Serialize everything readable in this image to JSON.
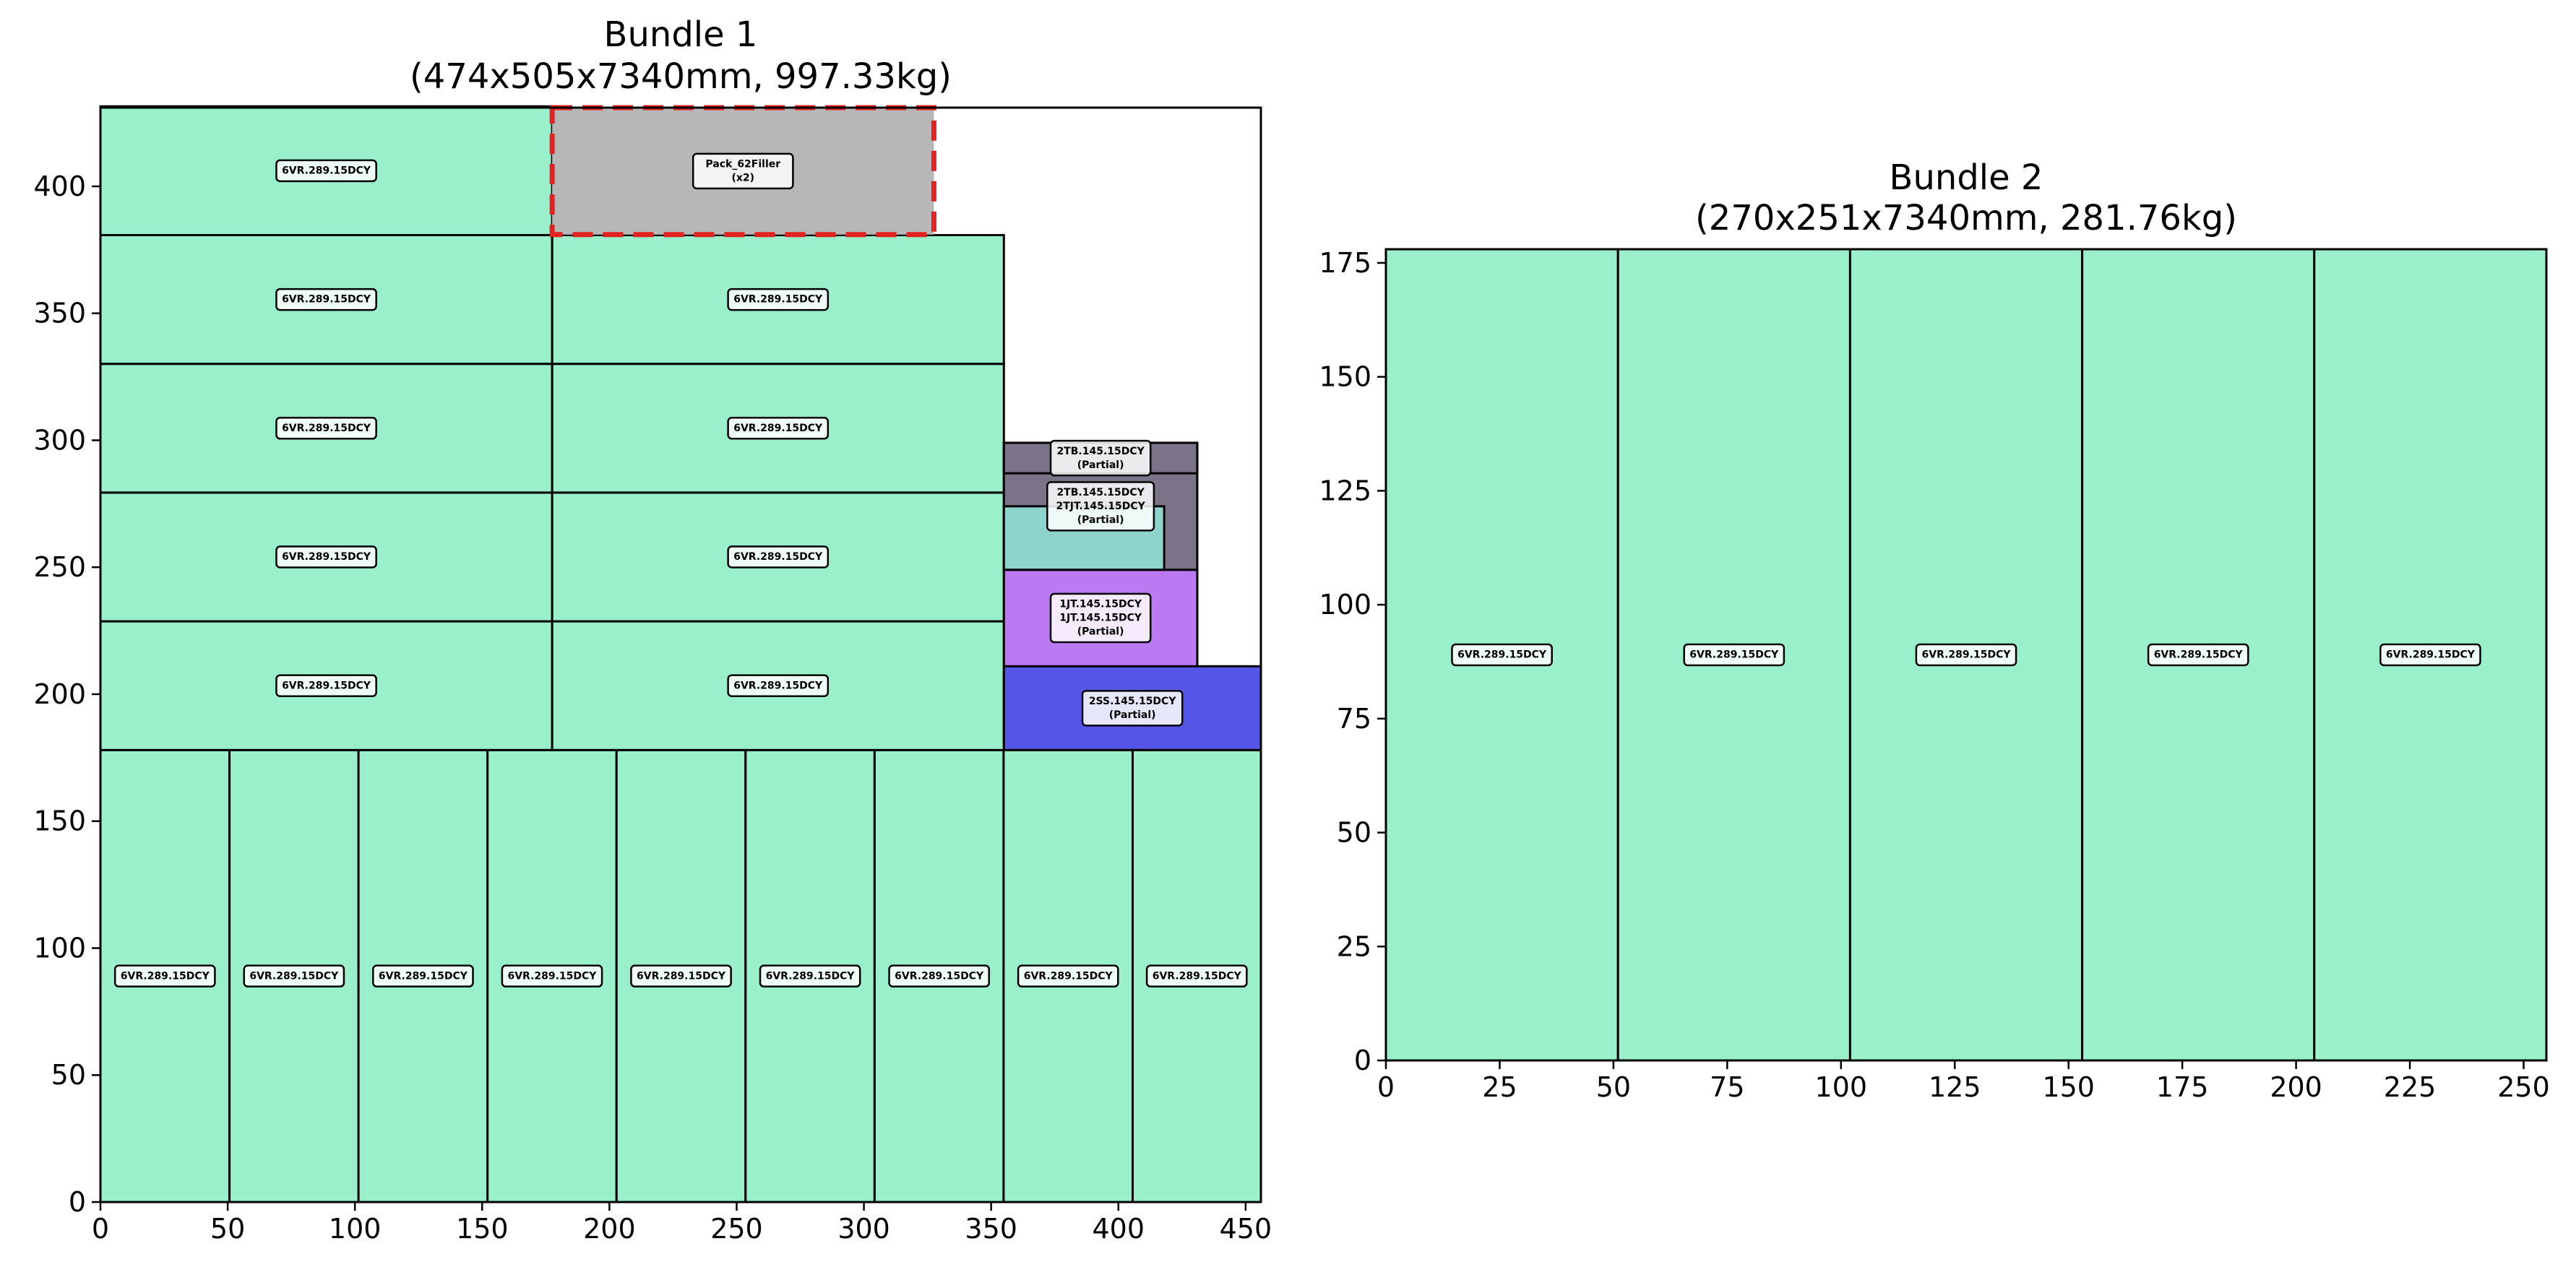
{
  "chart_data": [
    {
      "type": "rectangle-packing",
      "title_line1": "Bundle 1",
      "title_line2": "(474x505x7340mm, 997.33kg)",
      "xlim": [
        0,
        456
      ],
      "ylim": [
        0,
        431
      ],
      "xticks": [
        0,
        50,
        100,
        150,
        200,
        250,
        300,
        350,
        400,
        450
      ],
      "yticks": [
        0,
        50,
        100,
        150,
        200,
        250,
        300,
        350,
        400
      ],
      "pieces": [
        {
          "x": 0,
          "y": 0,
          "w": 50.7,
          "h": 178,
          "color": "#9af0cb",
          "labels": [
            "6VR.289.15DCY"
          ]
        },
        {
          "x": 50.7,
          "y": 0,
          "w": 50.7,
          "h": 178,
          "color": "#9af0cb",
          "labels": [
            "6VR.289.15DCY"
          ]
        },
        {
          "x": 101.4,
          "y": 0,
          "w": 50.7,
          "h": 178,
          "color": "#9af0cb",
          "labels": [
            "6VR.289.15DCY"
          ]
        },
        {
          "x": 152.1,
          "y": 0,
          "w": 50.7,
          "h": 178,
          "color": "#9af0cb",
          "labels": [
            "6VR.289.15DCY"
          ]
        },
        {
          "x": 202.8,
          "y": 0,
          "w": 50.7,
          "h": 178,
          "color": "#9af0cb",
          "labels": [
            "6VR.289.15DCY"
          ]
        },
        {
          "x": 253.5,
          "y": 0,
          "w": 50.7,
          "h": 178,
          "color": "#9af0cb",
          "labels": [
            "6VR.289.15DCY"
          ]
        },
        {
          "x": 304.2,
          "y": 0,
          "w": 50.7,
          "h": 178,
          "color": "#9af0cb",
          "labels": [
            "6VR.289.15DCY"
          ]
        },
        {
          "x": 354.9,
          "y": 0,
          "w": 50.7,
          "h": 178,
          "color": "#9af0cb",
          "labels": [
            "6VR.289.15DCY"
          ]
        },
        {
          "x": 405.6,
          "y": 0,
          "w": 50.7,
          "h": 178,
          "color": "#9af0cb",
          "labels": [
            "6VR.289.15DCY"
          ]
        },
        {
          "x": 0,
          "y": 178,
          "w": 177.5,
          "h": 50.7,
          "color": "#9af0cb",
          "labels": [
            "6VR.289.15DCY"
          ]
        },
        {
          "x": 177.5,
          "y": 178,
          "w": 177.5,
          "h": 50.7,
          "color": "#9af0cb",
          "labels": [
            "6VR.289.15DCY"
          ]
        },
        {
          "x": 0,
          "y": 228.7,
          "w": 177.5,
          "h": 50.7,
          "color": "#9af0cb",
          "labels": [
            "6VR.289.15DCY"
          ]
        },
        {
          "x": 177.5,
          "y": 228.7,
          "w": 177.5,
          "h": 50.7,
          "color": "#9af0cb",
          "labels": [
            "6VR.289.15DCY"
          ]
        },
        {
          "x": 0,
          "y": 279.4,
          "w": 177.5,
          "h": 50.7,
          "color": "#9af0cb",
          "labels": [
            "6VR.289.15DCY"
          ]
        },
        {
          "x": 177.5,
          "y": 279.4,
          "w": 177.5,
          "h": 50.7,
          "color": "#9af0cb",
          "labels": [
            "6VR.289.15DCY"
          ]
        },
        {
          "x": 0,
          "y": 330.1,
          "w": 177.5,
          "h": 50.7,
          "color": "#9af0cb",
          "labels": [
            "6VR.289.15DCY"
          ]
        },
        {
          "x": 177.5,
          "y": 330.1,
          "w": 177.5,
          "h": 50.7,
          "color": "#9af0cb",
          "labels": [
            "6VR.289.15DCY"
          ]
        },
        {
          "x": 0,
          "y": 380.8,
          "w": 177.5,
          "h": 50.7,
          "color": "#9af0cb",
          "labels": [
            "6VR.289.15DCY"
          ]
        },
        {
          "x": 355,
          "y": 178,
          "w": 101,
          "h": 33,
          "color": "#5656e6",
          "labels": [
            "2SS.145.15DCY",
            "(Partial)"
          ]
        },
        {
          "x": 355,
          "y": 211,
          "w": 76,
          "h": 38,
          "color": "#bc7af2",
          "labels": [
            "1JT.145.15DCY",
            "1JT.145.15DCY",
            "(Partial)"
          ]
        },
        {
          "x": 355,
          "y": 249,
          "w": 76,
          "h": 50,
          "color": "#7b7488",
          "labels": [
            "2TB.145.15DCY",
            "2TJT.145.15DCY",
            "(Partial)"
          ]
        },
        {
          "x": 355,
          "y": 287,
          "w": 76,
          "h": 12,
          "color": "#7b7488",
          "labels": [
            "2TB.145.15DCY",
            "(Partial)"
          ]
        },
        {
          "x": 355,
          "y": 249,
          "w": 63,
          "h": 25,
          "color": "#8fd4cc",
          "labels": []
        }
      ],
      "filler": {
        "x": 177.5,
        "y": 381,
        "w": 150,
        "h": 50,
        "color": "#b7b7b7",
        "border_color": "#e32222",
        "labels": [
          "Pack_62Filler",
          "(x2)"
        ]
      }
    },
    {
      "type": "rectangle-packing",
      "title_line1": "Bundle 2",
      "title_line2": "(270x251x7340mm, 281.76kg)",
      "xlim": [
        0,
        255
      ],
      "ylim": [
        0,
        178
      ],
      "xticks": [
        0,
        25,
        50,
        75,
        100,
        125,
        150,
        175,
        200,
        225,
        250
      ],
      "yticks": [
        0,
        25,
        50,
        75,
        100,
        125,
        150,
        175
      ],
      "pieces": [
        {
          "x": 0,
          "y": 0,
          "w": 51,
          "h": 178,
          "color": "#9af0cb",
          "labels": [
            "6VR.289.15DCY"
          ]
        },
        {
          "x": 51,
          "y": 0,
          "w": 51,
          "h": 178,
          "color": "#9af0cb",
          "labels": [
            "6VR.289.15DCY"
          ]
        },
        {
          "x": 102,
          "y": 0,
          "w": 51,
          "h": 178,
          "color": "#9af0cb",
          "labels": [
            "6VR.289.15DCY"
          ]
        },
        {
          "x": 153,
          "y": 0,
          "w": 51,
          "h": 178,
          "color": "#9af0cb",
          "labels": [
            "6VR.289.15DCY"
          ]
        },
        {
          "x": 204,
          "y": 0,
          "w": 51,
          "h": 178,
          "color": "#9af0cb",
          "labels": [
            "6VR.289.15DCY"
          ]
        }
      ]
    }
  ]
}
